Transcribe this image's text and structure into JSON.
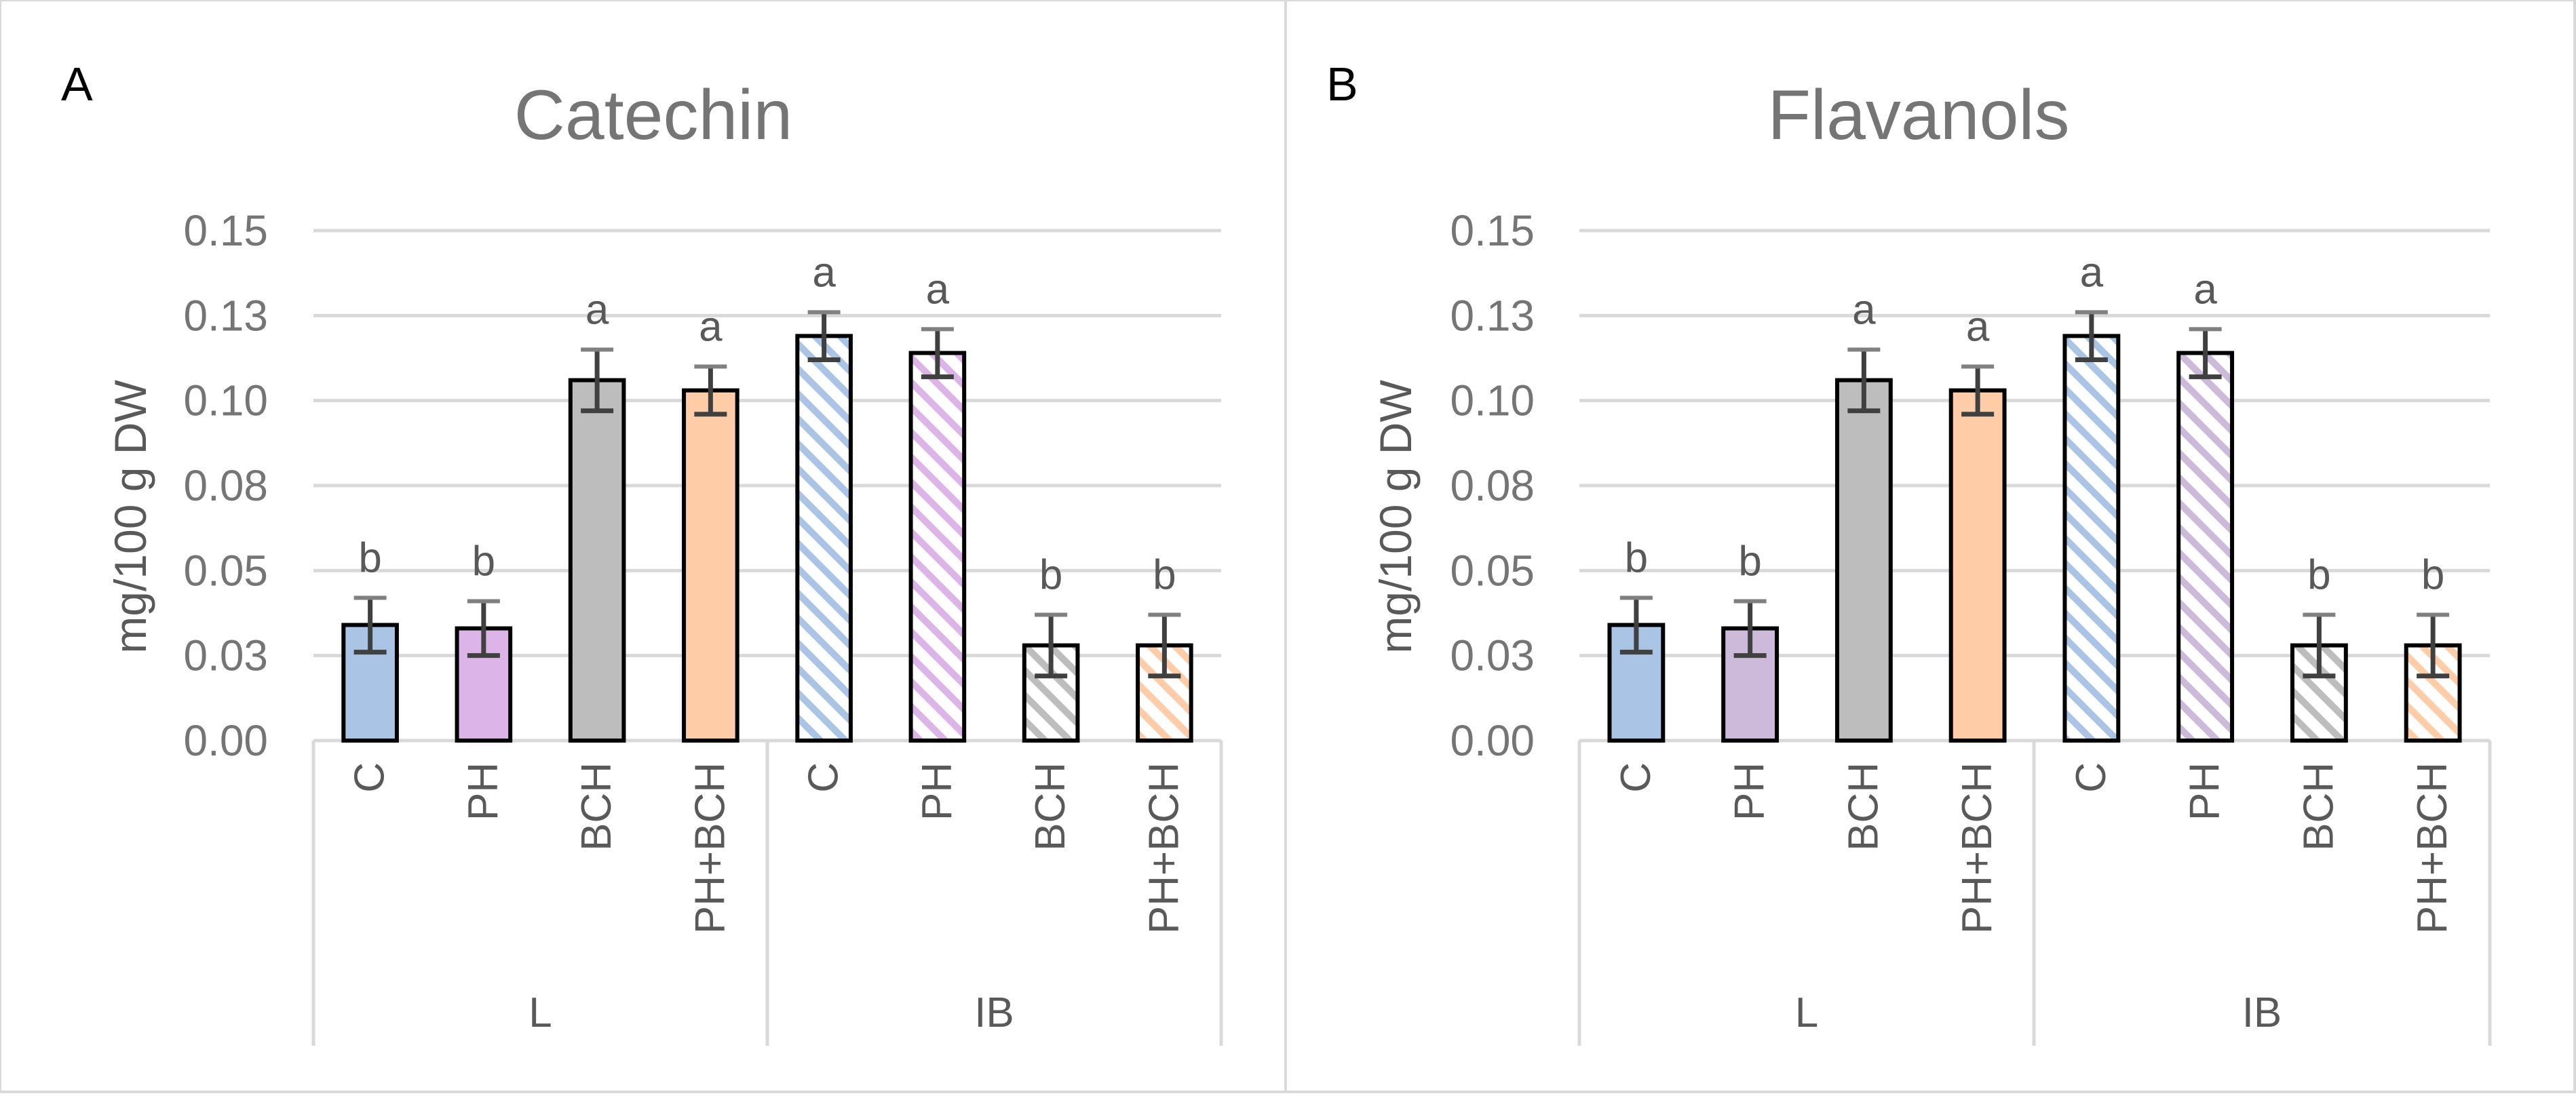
{
  "chart_data": [
    {
      "type": "bar",
      "panel_label": "A",
      "title": "Catechin",
      "ylabel": "mg/100 g DW",
      "ylim": [
        0,
        0.15
      ],
      "yticks": [
        "0.15",
        "0.13",
        "0.10",
        "0.08",
        "0.05",
        "0.03",
        "0.00"
      ],
      "ytick_values": [
        0.15,
        0.125,
        0.1,
        0.075,
        0.05,
        0.025,
        0
      ],
      "groups": [
        {
          "name": "L",
          "categories": [
            "C",
            "PH",
            "BCH",
            "PH+BCH"
          ]
        },
        {
          "name": "IB",
          "categories": [
            "C",
            "PH",
            "BCH",
            "PH+BCH"
          ]
        }
      ],
      "values": [
        0.034,
        0.033,
        0.106,
        0.103,
        0.119,
        0.114,
        0.028,
        0.028
      ],
      "errors": [
        0.008,
        0.008,
        0.009,
        0.007,
        0.007,
        0.007,
        0.009,
        0.009
      ],
      "letters": [
        "b",
        "b",
        "a",
        "a",
        "a",
        "a",
        "b",
        "b"
      ],
      "colors": [
        "#a9c4e4",
        "#dcb4e8",
        "#bdbdbd",
        "#ffcca8",
        "#a9c4e4",
        "#dcb4e8",
        "#bdbdbd",
        "#ffcca8"
      ],
      "hatched": [
        false,
        false,
        false,
        false,
        true,
        true,
        true,
        true
      ]
    },
    {
      "type": "bar",
      "panel_label": "B",
      "title": "Flavanols",
      "ylabel": "mg/100 g DW",
      "ylim": [
        0,
        0.15
      ],
      "yticks": [
        "0.15",
        "0.13",
        "0.10",
        "0.08",
        "0.05",
        "0.03",
        "0.00"
      ],
      "ytick_values": [
        0.15,
        0.125,
        0.1,
        0.075,
        0.05,
        0.025,
        0
      ],
      "groups": [
        {
          "name": "L",
          "categories": [
            "C",
            "PH",
            "BCH",
            "PH+BCH"
          ]
        },
        {
          "name": "IB",
          "categories": [
            "C",
            "PH",
            "BCH",
            "PH+BCH"
          ]
        }
      ],
      "values": [
        0.034,
        0.033,
        0.106,
        0.103,
        0.119,
        0.114,
        0.028,
        0.028
      ],
      "errors": [
        0.008,
        0.008,
        0.009,
        0.007,
        0.007,
        0.007,
        0.009,
        0.009
      ],
      "letters": [
        "b",
        "b",
        "a",
        "a",
        "a",
        "a",
        "b",
        "b"
      ],
      "colors": [
        "#a9c4e4",
        "#cdbadb",
        "#bdbdbd",
        "#ffcca8",
        "#a9c4e4",
        "#cdbadb",
        "#bdbdbd",
        "#ffcca8"
      ],
      "hatched": [
        false,
        false,
        false,
        false,
        true,
        true,
        true,
        true
      ]
    }
  ]
}
